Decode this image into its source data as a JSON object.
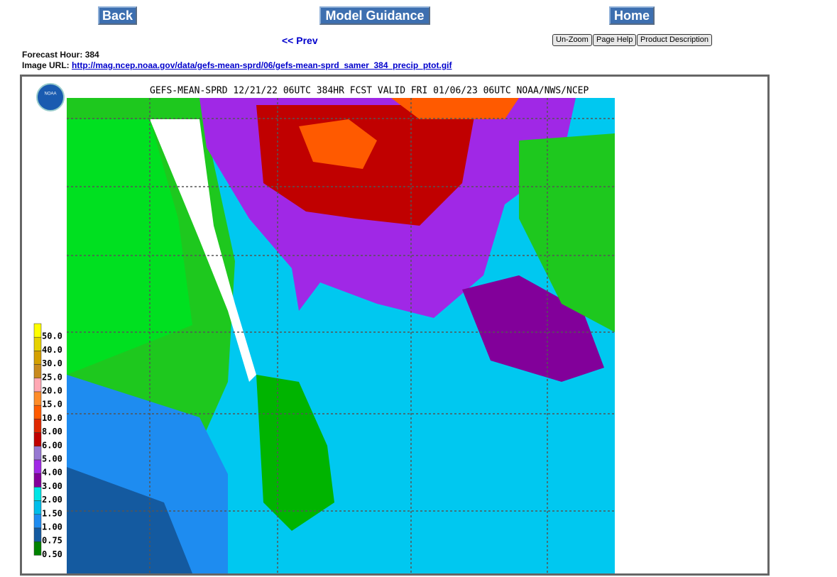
{
  "nav": {
    "back": "Back",
    "model_guidance": "Model Guidance",
    "home": "Home",
    "prev": "<< Prev"
  },
  "tools": [
    "Un-Zoom",
    "Page Help",
    "Product Description"
  ],
  "info": {
    "forecast_label": "Forecast Hour:",
    "forecast_value": "384",
    "url_label": "Image URL:",
    "url": "http://mag.ncep.noaa.gov/data/gefs-mean-sprd/06/gefs-mean-sprd_samer_384_precip_ptot.gif"
  },
  "map": {
    "title": "GEFS-MEAN-SPRD 12/21/22 06UTC 384HR FCST VALID FRI 01/06/23 06UTC NOAA/NWS/NCEP",
    "logo": "NOAA",
    "legend": [
      {
        "label": "50.0",
        "color": "#ffff00"
      },
      {
        "label": "40.0",
        "color": "#e6d200"
      },
      {
        "label": "30.0",
        "color": "#d4a000"
      },
      {
        "label": "25.0",
        "color": "#c88a1e"
      },
      {
        "label": "20.0",
        "color": "#ffa8b4"
      },
      {
        "label": "15.0",
        "color": "#ff8c28"
      },
      {
        "label": "10.0",
        "color": "#ff5a00"
      },
      {
        "label": "8.00",
        "color": "#e02800"
      },
      {
        "label": "6.00",
        "color": "#c00000"
      },
      {
        "label": "5.00",
        "color": "#9678d2"
      },
      {
        "label": "4.00",
        "color": "#a028e6"
      },
      {
        "label": "3.00",
        "color": "#82009a"
      },
      {
        "label": "2.00",
        "color": "#00e6e6"
      },
      {
        "label": "1.50",
        "color": "#00beeb"
      },
      {
        "label": "1.00",
        "color": "#1e8cf0"
      },
      {
        "label": "0.75",
        "color": "#145aa0"
      },
      {
        "label": "0.50",
        "color": "#008200"
      }
    ]
  }
}
